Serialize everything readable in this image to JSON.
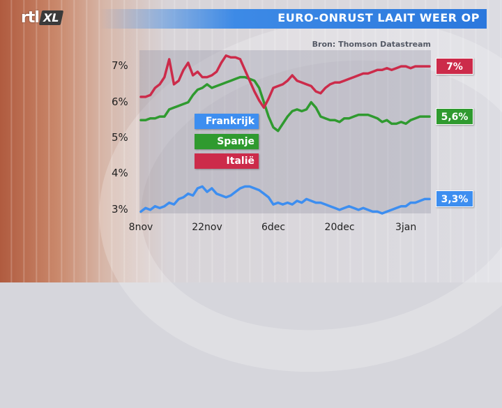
{
  "header": {
    "logo_main": "rtl",
    "logo_sub": "XL",
    "title": "EURO-ONRUST LAAIT WEER OP"
  },
  "source": "Bron: Thomson Datastream",
  "colors": {
    "frankrijk": "#3d8ef0",
    "spanje": "#2f9a2f",
    "italie": "#cc2b4a",
    "title_bar": "#2b78dd"
  },
  "chart_data": {
    "type": "line",
    "title": "EURO-ONRUST LAAIT WEER OP",
    "xlabel": "",
    "ylabel": "",
    "ylim": [
      2.9,
      7.45
    ],
    "y_ticks": [
      "7%",
      "6%",
      "5%",
      "4%",
      "3%"
    ],
    "y_tick_values": [
      7,
      6,
      5,
      4,
      3
    ],
    "x_ticks": [
      "8nov",
      "22nov",
      "6dec",
      "20dec",
      "3jan"
    ],
    "x_tick_index": [
      0,
      14,
      28,
      42,
      56
    ],
    "x_count": 62,
    "legend": [
      "Frankrijk",
      "Spanje",
      "Italië"
    ],
    "end_labels": [
      "3,3%",
      "5,6%",
      "7%"
    ],
    "series": [
      {
        "name": "Frankrijk",
        "values": [
          2.95,
          3.05,
          3.0,
          3.1,
          3.05,
          3.1,
          3.2,
          3.15,
          3.3,
          3.35,
          3.45,
          3.4,
          3.6,
          3.65,
          3.5,
          3.6,
          3.45,
          3.4,
          3.35,
          3.4,
          3.5,
          3.6,
          3.65,
          3.65,
          3.6,
          3.55,
          3.45,
          3.35,
          3.15,
          3.2,
          3.15,
          3.2,
          3.15,
          3.25,
          3.2,
          3.3,
          3.25,
          3.2,
          3.2,
          3.15,
          3.1,
          3.05,
          3.0,
          3.05,
          3.1,
          3.05,
          3.0,
          3.05,
          3.0,
          2.95,
          2.95,
          2.9,
          2.95,
          3.0,
          3.05,
          3.1,
          3.1,
          3.2,
          3.2,
          3.25,
          3.3,
          3.3
        ]
      },
      {
        "name": "Spanje",
        "values": [
          5.5,
          5.5,
          5.55,
          5.55,
          5.6,
          5.6,
          5.8,
          5.85,
          5.9,
          5.95,
          6.0,
          6.2,
          6.35,
          6.4,
          6.5,
          6.4,
          6.45,
          6.5,
          6.55,
          6.6,
          6.65,
          6.7,
          6.7,
          6.65,
          6.6,
          6.4,
          6.0,
          5.6,
          5.3,
          5.2,
          5.4,
          5.6,
          5.75,
          5.8,
          5.75,
          5.8,
          6.0,
          5.85,
          5.6,
          5.55,
          5.5,
          5.5,
          5.45,
          5.55,
          5.55,
          5.6,
          5.65,
          5.65,
          5.65,
          5.6,
          5.55,
          5.45,
          5.5,
          5.4,
          5.4,
          5.45,
          5.4,
          5.5,
          5.55,
          5.6,
          5.6,
          5.6
        ]
      },
      {
        "name": "Italië",
        "values": [
          6.15,
          6.15,
          6.2,
          6.4,
          6.5,
          6.7,
          7.2,
          6.5,
          6.6,
          6.9,
          7.1,
          6.75,
          6.85,
          6.7,
          6.7,
          6.75,
          6.85,
          7.1,
          7.3,
          7.25,
          7.25,
          7.2,
          6.9,
          6.6,
          6.3,
          6.05,
          5.85,
          6.1,
          6.4,
          6.45,
          6.5,
          6.6,
          6.75,
          6.6,
          6.55,
          6.5,
          6.45,
          6.3,
          6.25,
          6.4,
          6.5,
          6.55,
          6.55,
          6.6,
          6.65,
          6.7,
          6.75,
          6.8,
          6.8,
          6.85,
          6.9,
          6.9,
          6.95,
          6.9,
          6.95,
          7.0,
          7.0,
          6.95,
          7.0,
          7.0,
          7.0,
          7.0
        ]
      }
    ]
  }
}
